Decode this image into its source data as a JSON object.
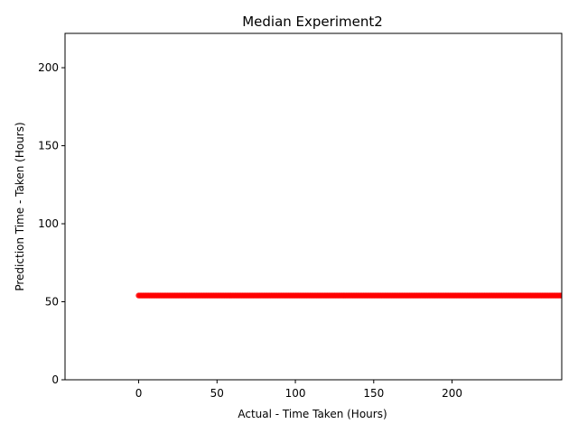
{
  "chart_data": {
    "type": "scatter",
    "title": "Median Experiment2",
    "xlabel": "Actual - Time Taken (Hours)",
    "ylabel": "Prediction Time - Taken (Hours)",
    "xlim": [
      -47,
      270
    ],
    "ylim": [
      0,
      222
    ],
    "xticks": [
      0,
      50,
      100,
      150,
      200
    ],
    "yticks": [
      0,
      50,
      100,
      150,
      200
    ],
    "grid": false,
    "marker_color": "#ff0000",
    "series": [
      {
        "x_range": [
          0,
          275
        ],
        "y_value": 54,
        "note_points": 300
      }
    ]
  }
}
